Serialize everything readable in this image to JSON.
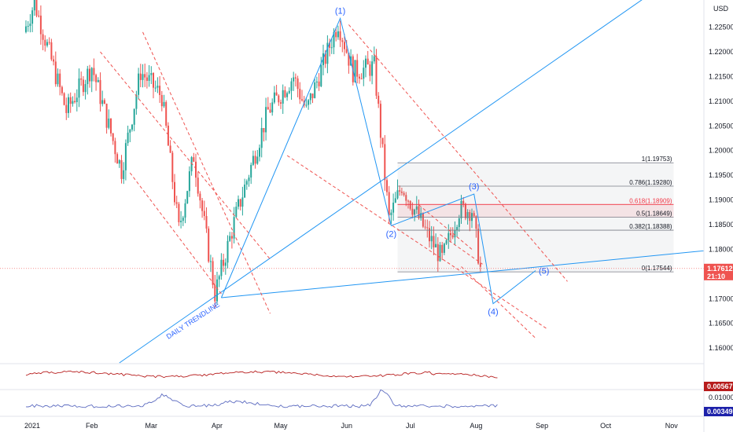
{
  "currency": "USD",
  "colors": {
    "up": "#26a69a",
    "down": "#ef5350",
    "trend": "#2196f3",
    "channel": "#ef5350",
    "fib": "#787b86",
    "fib_highlight": "#f23645",
    "ind1": "#b71c1c",
    "ind2": "#5c6bc0"
  },
  "chart_data": {
    "type": "candlestick",
    "ylim": [
      1.157,
      1.2305
    ],
    "y_ticks": [
      "1.22500",
      "1.22000",
      "1.21500",
      "1.21000",
      "1.20500",
      "1.20000",
      "1.19500",
      "1.19000",
      "1.18500",
      "1.18000",
      "1.17500",
      "1.17000",
      "1.16500",
      "1.16000"
    ],
    "y_tick_values": [
      1.225,
      1.22,
      1.215,
      1.21,
      1.205,
      1.2,
      1.195,
      1.19,
      1.185,
      1.18,
      1.175,
      1.17,
      1.165,
      1.16
    ],
    "x_labels": [
      {
        "label": "2021",
        "day": 0
      },
      {
        "label": "Feb",
        "day": 31
      },
      {
        "label": "Mar",
        "day": 59
      },
      {
        "label": "Apr",
        "day": 90
      },
      {
        "label": "May",
        "day": 120
      },
      {
        "label": "Jun",
        "day": 151
      },
      {
        "label": "Jul",
        "day": 181
      },
      {
        "label": "Aug",
        "day": 212
      },
      {
        "label": "Sep",
        "day": 243
      },
      {
        "label": "Oct",
        "day": 273
      },
      {
        "label": "Nov",
        "day": 304
      }
    ],
    "pivots": [
      {
        "day": 0,
        "v": 1.224
      },
      {
        "day": 5,
        "v": 1.23
      },
      {
        "day": 20,
        "v": 1.208
      },
      {
        "day": 32,
        "v": 1.217
      },
      {
        "day": 46,
        "v": 1.196
      },
      {
        "day": 55,
        "v": 1.216
      },
      {
        "day": 65,
        "v": 1.211
      },
      {
        "day": 73,
        "v": 1.184
      },
      {
        "day": 80,
        "v": 1.199
      },
      {
        "day": 90,
        "v": 1.171
      },
      {
        "day": 100,
        "v": 1.187
      },
      {
        "day": 115,
        "v": 1.208
      },
      {
        "day": 127,
        "v": 1.215
      },
      {
        "day": 133,
        "v": 1.208
      },
      {
        "day": 148,
        "v": 1.226
      },
      {
        "day": 155,
        "v": 1.216
      },
      {
        "day": 165,
        "v": 1.217
      },
      {
        "day": 172,
        "v": 1.186
      },
      {
        "day": 178,
        "v": 1.193
      },
      {
        "day": 190,
        "v": 1.183
      },
      {
        "day": 197,
        "v": 1.178
      },
      {
        "day": 205,
        "v": 1.188
      },
      {
        "day": 211,
        "v": 1.188
      },
      {
        "day": 215,
        "v": 1.1761
      }
    ],
    "waves": [
      {
        "label": "(1)",
        "day": 148,
        "v": 1.2268,
        "pos": "above"
      },
      {
        "label": "(2)",
        "day": 172,
        "v": 1.1848,
        "pos": "below"
      },
      {
        "label": "(3)",
        "day": 211,
        "v": 1.1912,
        "pos": "above"
      },
      {
        "label": "(4)",
        "day": 220,
        "v": 1.169,
        "pos": "below"
      },
      {
        "label": "(5)",
        "day": 240,
        "v": 1.1757,
        "pos": "right"
      }
    ],
    "wave_path": [
      {
        "day": 92,
        "v": 1.1702
      },
      {
        "day": 148,
        "v": 1.2268
      },
      {
        "day": 172,
        "v": 1.1848
      },
      {
        "day": 211,
        "v": 1.1912
      },
      {
        "day": 220,
        "v": 1.169
      },
      {
        "day": 240,
        "v": 1.1757
      }
    ],
    "fib_levels": [
      {
        "ratio": "1",
        "value": 1.19753,
        "text": "1(1.19753)"
      },
      {
        "ratio": "0.786",
        "value": 1.1928,
        "text": "0.786(1.19280)"
      },
      {
        "ratio": "0.618",
        "value": 1.18909,
        "text": "0.618(1.18909)",
        "highlight": true
      },
      {
        "ratio": "0.5",
        "value": 1.18649,
        "text": "0.5(1.18649)"
      },
      {
        "ratio": "0.382",
        "value": 1.18388,
        "text": "0.382(1.18388)"
      },
      {
        "ratio": "0",
        "value": 1.17544,
        "text": "0(1.17544)"
      }
    ],
    "fib_range_days": [
      175,
      305
    ],
    "trendline_label": "DAILY TRENDLINE",
    "last_price": "1.17612",
    "countdown": "21:10",
    "indicator1_value": "0.00567",
    "indicator2_value": "0.00349",
    "indicator2_tick": "0.01000"
  }
}
